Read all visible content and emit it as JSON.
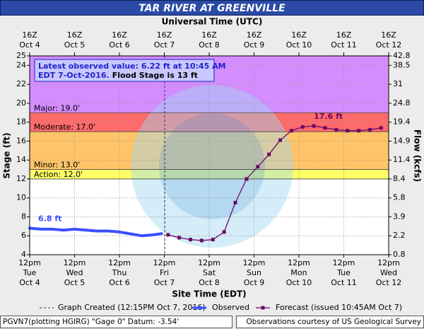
{
  "chart_data": {
    "type": "line",
    "title": "TAR RIVER AT GREENVILLE",
    "top_axis_title": "Universal Time (UTC)",
    "xlabel": "Site Time (EDT)",
    "ylabel": "Stage (ft)",
    "y2label": "Flow (kcfs)",
    "xlim": [
      0,
      8
    ],
    "ylim": [
      4,
      25
    ],
    "yticks": [
      4,
      6,
      8,
      10,
      12,
      14,
      16,
      18,
      20,
      22,
      24,
      25
    ],
    "grid": true,
    "xticks": [
      {
        "value": 0,
        "label": [
          "12pm",
          "Tue",
          "Oct 4"
        ]
      },
      {
        "value": 1,
        "label": [
          "12pm",
          "Wed",
          "Oct 5"
        ]
      },
      {
        "value": 2,
        "label": [
          "12pm",
          "Thu",
          "Oct 6"
        ]
      },
      {
        "value": 3,
        "label": [
          "12pm",
          "Fri",
          "Oct 7"
        ]
      },
      {
        "value": 4,
        "label": [
          "12pm",
          "Sat",
          "Oct 8"
        ]
      },
      {
        "value": 5,
        "label": [
          "12pm",
          "Sun",
          "Oct 9"
        ]
      },
      {
        "value": 6,
        "label": [
          "12pm",
          "Mon",
          "Oct 10"
        ]
      },
      {
        "value": 7,
        "label": [
          "12pm",
          "Tue",
          "Oct 11"
        ]
      },
      {
        "value": 8,
        "label": [
          "12pm",
          "Wed",
          "Oct 12"
        ]
      }
    ],
    "top_xticks": [
      {
        "value": 0,
        "label": [
          "16Z",
          "Oct 4"
        ]
      },
      {
        "value": 1,
        "label": [
          "16Z",
          "Oct 5"
        ]
      },
      {
        "value": 2,
        "label": [
          "16Z",
          "Oct 6"
        ]
      },
      {
        "value": 3,
        "label": [
          "16Z",
          "Oct 7"
        ]
      },
      {
        "value": 4,
        "label": [
          "16Z",
          "Oct 8"
        ]
      },
      {
        "value": 5,
        "label": [
          "16Z",
          "Oct 9"
        ]
      },
      {
        "value": 6,
        "label": [
          "16Z",
          "Oct 10"
        ]
      },
      {
        "value": 7,
        "label": [
          "16Z",
          "Oct 11"
        ]
      },
      {
        "value": 8,
        "label": [
          "16Z",
          "Oct 12"
        ]
      }
    ],
    "flow_ticks": [
      {
        "stage": 25,
        "flow": 42.8
      },
      {
        "stage": 24,
        "flow": 38.5
      },
      {
        "stage": 22,
        "flow": 31.0
      },
      {
        "stage": 20,
        "flow": 24.8
      },
      {
        "stage": 18,
        "flow": 19.4
      },
      {
        "stage": 16,
        "flow": 14.9
      },
      {
        "stage": 14,
        "flow": 11.4
      },
      {
        "stage": 12,
        "flow": 8.4
      },
      {
        "stage": 10,
        "flow": 5.8
      },
      {
        "stage": 8,
        "flow": 3.9
      },
      {
        "stage": 6,
        "flow": 2.2
      },
      {
        "stage": 4,
        "flow": 0.8
      }
    ],
    "flood_stages": [
      {
        "label": "Action: 12.0'",
        "value": 12,
        "color": "#ffff66"
      },
      {
        "label": "Minor: 13.0'",
        "value": 13,
        "color": "#ffc468"
      },
      {
        "label": "Moderate: 17.0'",
        "value": 17,
        "color": "#ff6a6a"
      },
      {
        "label": "Major: 19.0'",
        "value": 19,
        "color": "#d48cff"
      }
    ],
    "annotation": [
      "Latest observed value: 6.22 ft at 10:45 AM",
      "EDT 7-Oct-2016.",
      "Flood Stage is 13 ft"
    ],
    "created_line": {
      "x": 3.0104,
      "label": "Graph Created (12:15PM Oct 7, 2016)"
    },
    "series": [
      {
        "name": "Observed",
        "color": "#3a50ff",
        "x": [
          0,
          0.25,
          0.5,
          0.75,
          1,
          1.25,
          1.5,
          1.75,
          2,
          2.25,
          2.5,
          2.75,
          2.94
        ],
        "values": [
          6.8,
          6.7,
          6.7,
          6.6,
          6.7,
          6.6,
          6.5,
          6.5,
          6.4,
          6.2,
          6.0,
          6.1,
          6.22
        ],
        "value_labels": [
          "6.8 ft",
          null,
          null,
          null,
          null,
          null,
          null,
          null,
          null,
          null,
          null,
          null,
          null
        ]
      },
      {
        "name": "Forecast (issued 10:45AM Oct 7)",
        "color": "#6a0a6a",
        "x": [
          3.083,
          3.333,
          3.583,
          3.833,
          4.083,
          4.333,
          4.583,
          4.833,
          5.083,
          5.333,
          5.583,
          5.833,
          6.083,
          6.333,
          6.583,
          6.833,
          7.083,
          7.333,
          7.583,
          7.833
        ],
        "values": [
          6.1,
          5.8,
          5.6,
          5.5,
          5.6,
          6.4,
          9.5,
          12.0,
          13.3,
          14.6,
          16.1,
          17.1,
          17.5,
          17.6,
          17.4,
          17.2,
          17.1,
          17.1,
          17.2,
          17.4
        ],
        "value_labels": [
          null,
          null,
          null,
          null,
          null,
          null,
          null,
          null,
          null,
          null,
          null,
          null,
          null,
          "17.6 ft",
          null,
          null,
          null,
          null,
          null,
          null
        ]
      }
    ],
    "footer_left": "PGVN7(plotting HGIRG) \"Gage 0\" Datum: -3.54'",
    "footer_right": "Observations courtesy of US Geological Survey"
  }
}
